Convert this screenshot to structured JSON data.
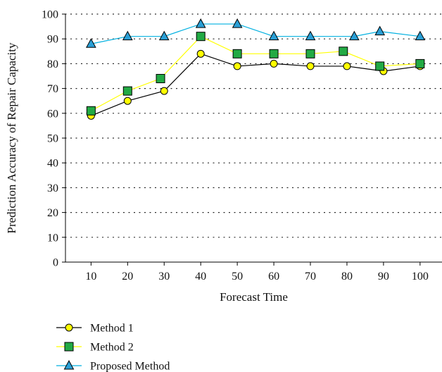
{
  "chart_data": {
    "type": "line",
    "xlabel": "Forecast Time",
    "ylabel": "Prediction Accuracy of Repair Capacity",
    "ylim": [
      0,
      100
    ],
    "yticks": [
      0,
      10,
      20,
      30,
      40,
      50,
      60,
      70,
      80,
      90,
      100
    ],
    "xticks": [
      10,
      20,
      30,
      40,
      50,
      60,
      70,
      80,
      90,
      100
    ],
    "xlim": [
      3,
      106
    ],
    "grid": "dotted horizontal",
    "legend": "bottom-left",
    "series": [
      {
        "name": "Method 1",
        "color": "#000000",
        "marker": "circle",
        "marker_fill": "#ffff00",
        "x": [
          10,
          20,
          30,
          40,
          50,
          60,
          70,
          80,
          90,
          100
        ],
        "y": [
          59,
          65,
          69,
          84,
          79,
          80,
          79,
          79,
          77,
          79
        ]
      },
      {
        "name": "Method 2",
        "color": "#ffff00",
        "marker": "square",
        "marker_fill": "#22aa44",
        "x": [
          10,
          20,
          29,
          40,
          50,
          60,
          70,
          79,
          89,
          100
        ],
        "y": [
          61,
          69,
          74,
          91,
          84,
          84,
          84,
          85,
          79,
          80
        ]
      },
      {
        "name": "Proposed Method",
        "color": "#00b0e0",
        "marker": "triangle",
        "marker_fill": "#2a9fd6",
        "x": [
          10,
          20,
          30,
          40,
          50,
          60,
          70,
          82,
          89,
          100
        ],
        "y": [
          88,
          91,
          91,
          96,
          96,
          91,
          91,
          91,
          93,
          91
        ]
      }
    ]
  }
}
